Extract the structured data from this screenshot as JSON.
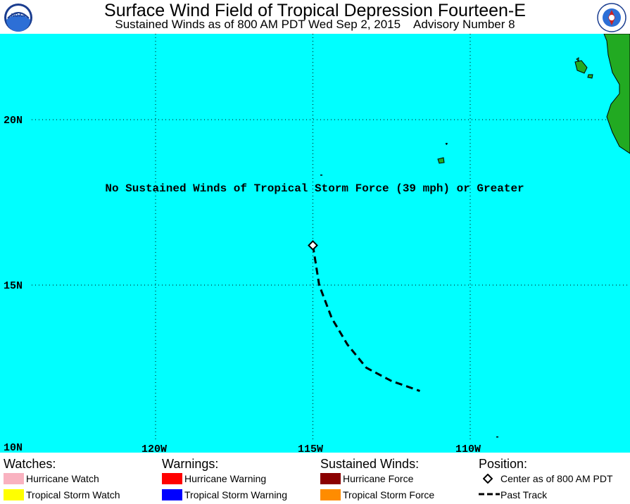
{
  "header": {
    "title": "Surface Wind Field of Tropical Depression Fourteen-E",
    "subtitle": "Sustained Winds as of 800 AM PDT Wed Sep 2, 2015    Advisory Number 8",
    "noaa_logo_text": "NOAA",
    "nws_logo_text": "NATIONAL WEATHER SERVICE"
  },
  "map": {
    "message": "No Sustained Winds of Tropical Storm Force (39 mph) or Greater",
    "lat_labels": [
      "20N",
      "15N",
      "10N"
    ],
    "lon_labels": [
      "120W",
      "115W",
      "110W"
    ],
    "ocean_color": "#00ffff",
    "land_color": "#22aa22",
    "center": {
      "lat": 16.2,
      "lon": 115.0
    },
    "past_track": [
      {
        "lat": 16.2,
        "lon": 115.0
      },
      {
        "lat": 15.0,
        "lon": 114.8
      },
      {
        "lat": 14.0,
        "lon": 114.4
      },
      {
        "lat": 13.2,
        "lon": 113.9
      },
      {
        "lat": 12.5,
        "lon": 113.3
      },
      {
        "lat": 12.1,
        "lon": 112.5
      },
      {
        "lat": 11.8,
        "lon": 111.6
      }
    ]
  },
  "legend": {
    "watches": {
      "heading": "Watches:",
      "items": [
        {
          "label": "Hurricane Watch",
          "color": "#f9b2c0"
        },
        {
          "label": "Tropical Storm Watch",
          "color": "#ffff00"
        }
      ]
    },
    "warnings": {
      "heading": "Warnings:",
      "items": [
        {
          "label": "Hurricane Warning",
          "color": "#ff0000"
        },
        {
          "label": "Tropical Storm Warning",
          "color": "#0000ff"
        }
      ]
    },
    "winds": {
      "heading": "Sustained Winds:",
      "items": [
        {
          "label": "Hurricane Force",
          "color": "#8b0000"
        },
        {
          "label": "Tropical Storm Force",
          "color": "#ff8c00"
        }
      ]
    },
    "position": {
      "heading": "Position:",
      "items": [
        {
          "label": "Center as of 800 AM PDT",
          "icon": "diamond-icon"
        },
        {
          "label": "Past Track",
          "icon": "dashed-line-icon"
        }
      ]
    }
  }
}
